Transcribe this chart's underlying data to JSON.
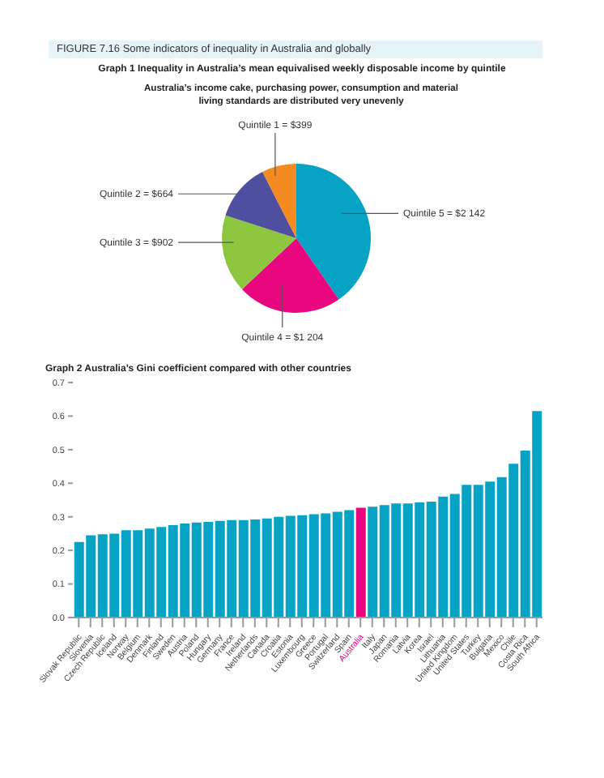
{
  "chart_data": [
    {
      "type": "pie",
      "title": "Graph 1 Inequality in Australia’s mean equivalised weekly disposable income by quintile",
      "subtitle": "Australia’s income cake, purchasing power, consumption and material living standards are distributed very unevenly",
      "annotations": [
        "FIGURE 7.16 Some indicators of inequality in Australia and globally"
      ],
      "categories": [
        "Quintile 5 = $2 142",
        "Quintile 4 = $1 204",
        "Quintile 3 = $902",
        "Quintile 2 = $664",
        "Quintile 1 = $399"
      ],
      "values": [
        2142,
        1204,
        902,
        664,
        399
      ],
      "colors": [
        "#07a3c4",
        "#e8077f",
        "#8dc63f",
        "#4f4f9f",
        "#f58b20"
      ]
    },
    {
      "type": "bar",
      "title": "Graph 2 Australia’s Gini coefficient compared with other countries",
      "categories": [
        "Slovak Republic",
        "Slovenia",
        "Czech Republic",
        "Iceland",
        "Norway",
        "Belgium",
        "Denmark",
        "Finland",
        "Sweden",
        "Austria",
        "Poland",
        "Hungary",
        "Germany",
        "France",
        "Ireland",
        "Netherlands",
        "Canada",
        "Croatia",
        "Estonia",
        "Luxembourg",
        "Greece",
        "Portugal",
        "Switzerland",
        "Spain",
        "Australia",
        "Italy",
        "Japan",
        "Romania",
        "Latvia",
        "Korea",
        "Israel",
        "Lithuania",
        "United Kingdom",
        "United States",
        "Turkey",
        "Bulgaria",
        "Mexico",
        "Chile",
        "Costa Rica",
        "South Africa"
      ],
      "values": [
        0.225,
        0.245,
        0.248,
        0.25,
        0.26,
        0.26,
        0.265,
        0.27,
        0.275,
        0.28,
        0.283,
        0.285,
        0.288,
        0.29,
        0.29,
        0.292,
        0.295,
        0.3,
        0.303,
        0.305,
        0.308,
        0.31,
        0.315,
        0.32,
        0.327,
        0.33,
        0.335,
        0.34,
        0.34,
        0.343,
        0.345,
        0.36,
        0.368,
        0.395,
        0.395,
        0.405,
        0.418,
        0.458,
        0.497,
        0.615
      ],
      "colors": [
        "#07a3c4",
        "#07a3c4",
        "#07a3c4",
        "#07a3c4",
        "#07a3c4",
        "#07a3c4",
        "#07a3c4",
        "#07a3c4",
        "#07a3c4",
        "#07a3c4",
        "#07a3c4",
        "#07a3c4",
        "#07a3c4",
        "#07a3c4",
        "#07a3c4",
        "#07a3c4",
        "#07a3c4",
        "#07a3c4",
        "#07a3c4",
        "#07a3c4",
        "#07a3c4",
        "#07a3c4",
        "#07a3c4",
        "#07a3c4",
        "#e8077f",
        "#07a3c4",
        "#07a3c4",
        "#07a3c4",
        "#07a3c4",
        "#07a3c4",
        "#07a3c4",
        "#07a3c4",
        "#07a3c4",
        "#07a3c4",
        "#07a3c4",
        "#07a3c4",
        "#07a3c4",
        "#07a3c4",
        "#07a3c4",
        "#07a3c4"
      ],
      "ylim": [
        0,
        0.7
      ],
      "yticks": [
        {
          "value": 0,
          "label": "0.0"
        },
        0.1,
        0.2,
        0.3,
        0.4,
        0.5,
        0.6,
        0.7
      ],
      "grid": false,
      "legend": false
    }
  ]
}
